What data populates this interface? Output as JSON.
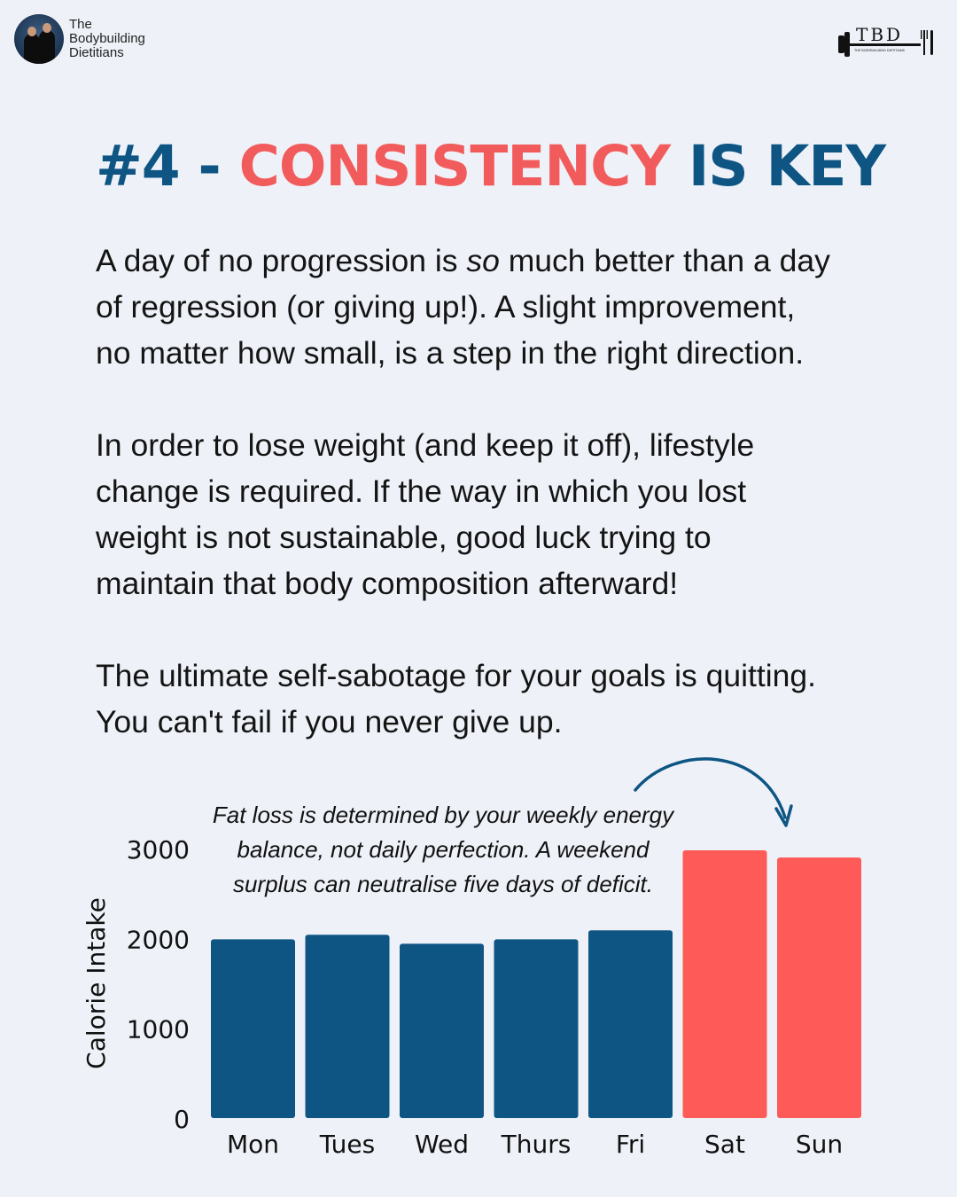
{
  "brand": {
    "name_lines": [
      "The",
      "Bodybuilding",
      "Dietitians"
    ],
    "logo_text": "TBD",
    "logo_subtext": "THE BODYBUILDING DIETITIANS"
  },
  "title": {
    "prefix": "#4 - ",
    "highlight": "CONSISTENCY",
    "suffix": " IS KEY"
  },
  "paragraphs": {
    "p1": {
      "lines": [
        [
          "A day of no progression is ",
          "so",
          " much better than a day"
        ],
        "of regression (or giving up!). A slight improvement,",
        "no matter how small, is a step in the right direction."
      ]
    },
    "p2": {
      "lines": [
        "In order to lose weight (and keep it off), lifestyle",
        "change is required. If the way in which you lost",
        "weight is not sustainable, good luck trying to",
        "maintain that body composition afterward!"
      ]
    },
    "p3": {
      "lines": [
        "The ultimate self-sabotage for your goals is quitting.",
        "You can't fail if you never give up."
      ]
    }
  },
  "colors": {
    "blue": "#0e5584",
    "red": "#f25b5b",
    "background": "#eef2f8",
    "bar_blue": "#0e5584",
    "bar_red": "#fe5a58",
    "arrow": "#0e5584"
  },
  "chart_data": {
    "type": "bar",
    "categories": [
      "Mon",
      "Tues",
      "Wed",
      "Thurs",
      "Fri",
      "Sat",
      "Sun"
    ],
    "values": [
      1990,
      2040,
      1940,
      1990,
      2090,
      2980,
      2900
    ],
    "highlight_categories": [
      "Sat",
      "Sun"
    ],
    "ylabel": "Calorie Intake",
    "xlabel": "",
    "ylim": [
      0,
      3000
    ],
    "yticks": [
      0,
      1000,
      2000,
      3000
    ],
    "grid": false,
    "annotation": {
      "lines": [
        "Fat loss is determined by your weekly energy",
        "balance, not daily perfection. A weekend",
        "surplus can neutralise five days of deficit."
      ],
      "arrow_to": "Sun"
    }
  }
}
